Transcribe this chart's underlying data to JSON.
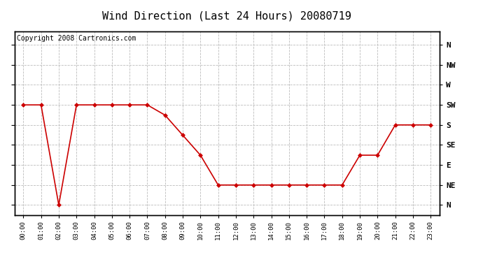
{
  "title": "Wind Direction (Last 24 Hours) 20080719",
  "copyright_text": "Copyright 2008 Cartronics.com",
  "x_labels": [
    "00:00",
    "01:00",
    "02:00",
    "03:00",
    "04:00",
    "05:00",
    "06:00",
    "07:00",
    "08:00",
    "09:00",
    "10:00",
    "11:00",
    "12:00",
    "13:00",
    "14:00",
    "15:00",
    "16:00",
    "17:00",
    "18:00",
    "19:00",
    "20:00",
    "21:00",
    "22:00",
    "23:00"
  ],
  "y_ticks_values": [
    360,
    315,
    270,
    225,
    180,
    135,
    90,
    45,
    0
  ],
  "y_ticks_labels": [
    "N",
    "NW",
    "W",
    "SW",
    "S",
    "SE",
    "E",
    "NE",
    "N"
  ],
  "y_min": -22,
  "y_max": 390,
  "wind_data": [
    225,
    225,
    0,
    225,
    225,
    225,
    225,
    225,
    202,
    157,
    112,
    45,
    45,
    45,
    45,
    45,
    45,
    45,
    45,
    112,
    112,
    180,
    180,
    180
  ],
  "line_color": "#cc0000",
  "marker": "D",
  "marker_size": 3,
  "bg_color": "#ffffff",
  "grid_color": "#bbbbbb",
  "grid_style": "--",
  "title_fontsize": 11,
  "copyright_fontsize": 7
}
